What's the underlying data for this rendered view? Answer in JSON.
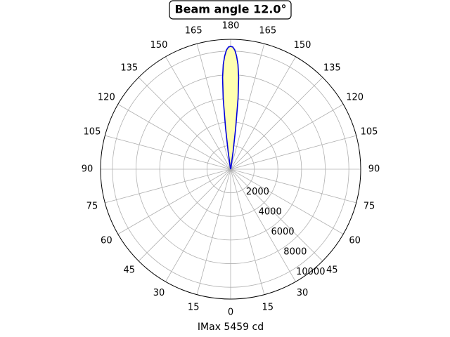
{
  "chart_data": {
    "type": "polar",
    "title": "Beam angle 12.0°",
    "xlabel": "IMax 5459 cd",
    "theta": [
      168,
      170,
      172,
      173,
      174,
      175,
      176,
      177,
      178,
      179,
      180,
      181,
      182,
      183,
      184,
      185,
      186,
      187,
      188,
      190,
      192
    ],
    "values": [
      0,
      200,
      1500,
      3500,
      6000,
      7800,
      8900,
      9600,
      10100,
      10350,
      10400,
      10350,
      10100,
      9600,
      8900,
      7800,
      6000,
      3500,
      1500,
      200,
      0
    ],
    "line_color": "#0000dd",
    "fill_color": "#ffffb0",
    "ylim": [
      0,
      11000
    ],
    "yticks": [
      2000,
      4000,
      6000,
      8000,
      10000
    ],
    "xticks": [
      0,
      15,
      30,
      45,
      60,
      75,
      90,
      105,
      120,
      135,
      150,
      165,
      180,
      {
        "value": 195,
        "label": "165"
      },
      {
        "value": 210,
        "label": "150"
      },
      {
        "value": 225,
        "label": "135"
      },
      {
        "value": 240,
        "label": "120"
      },
      {
        "value": 255,
        "label": "105"
      },
      {
        "value": 270,
        "label": "90"
      },
      {
        "value": 285,
        "label": "75"
      },
      {
        "value": 300,
        "label": "60"
      },
      {
        "value": 315,
        "label": "45"
      },
      {
        "value": 330,
        "label": "30"
      },
      {
        "value": 345,
        "label": "15"
      }
    ],
    "grid": true
  }
}
